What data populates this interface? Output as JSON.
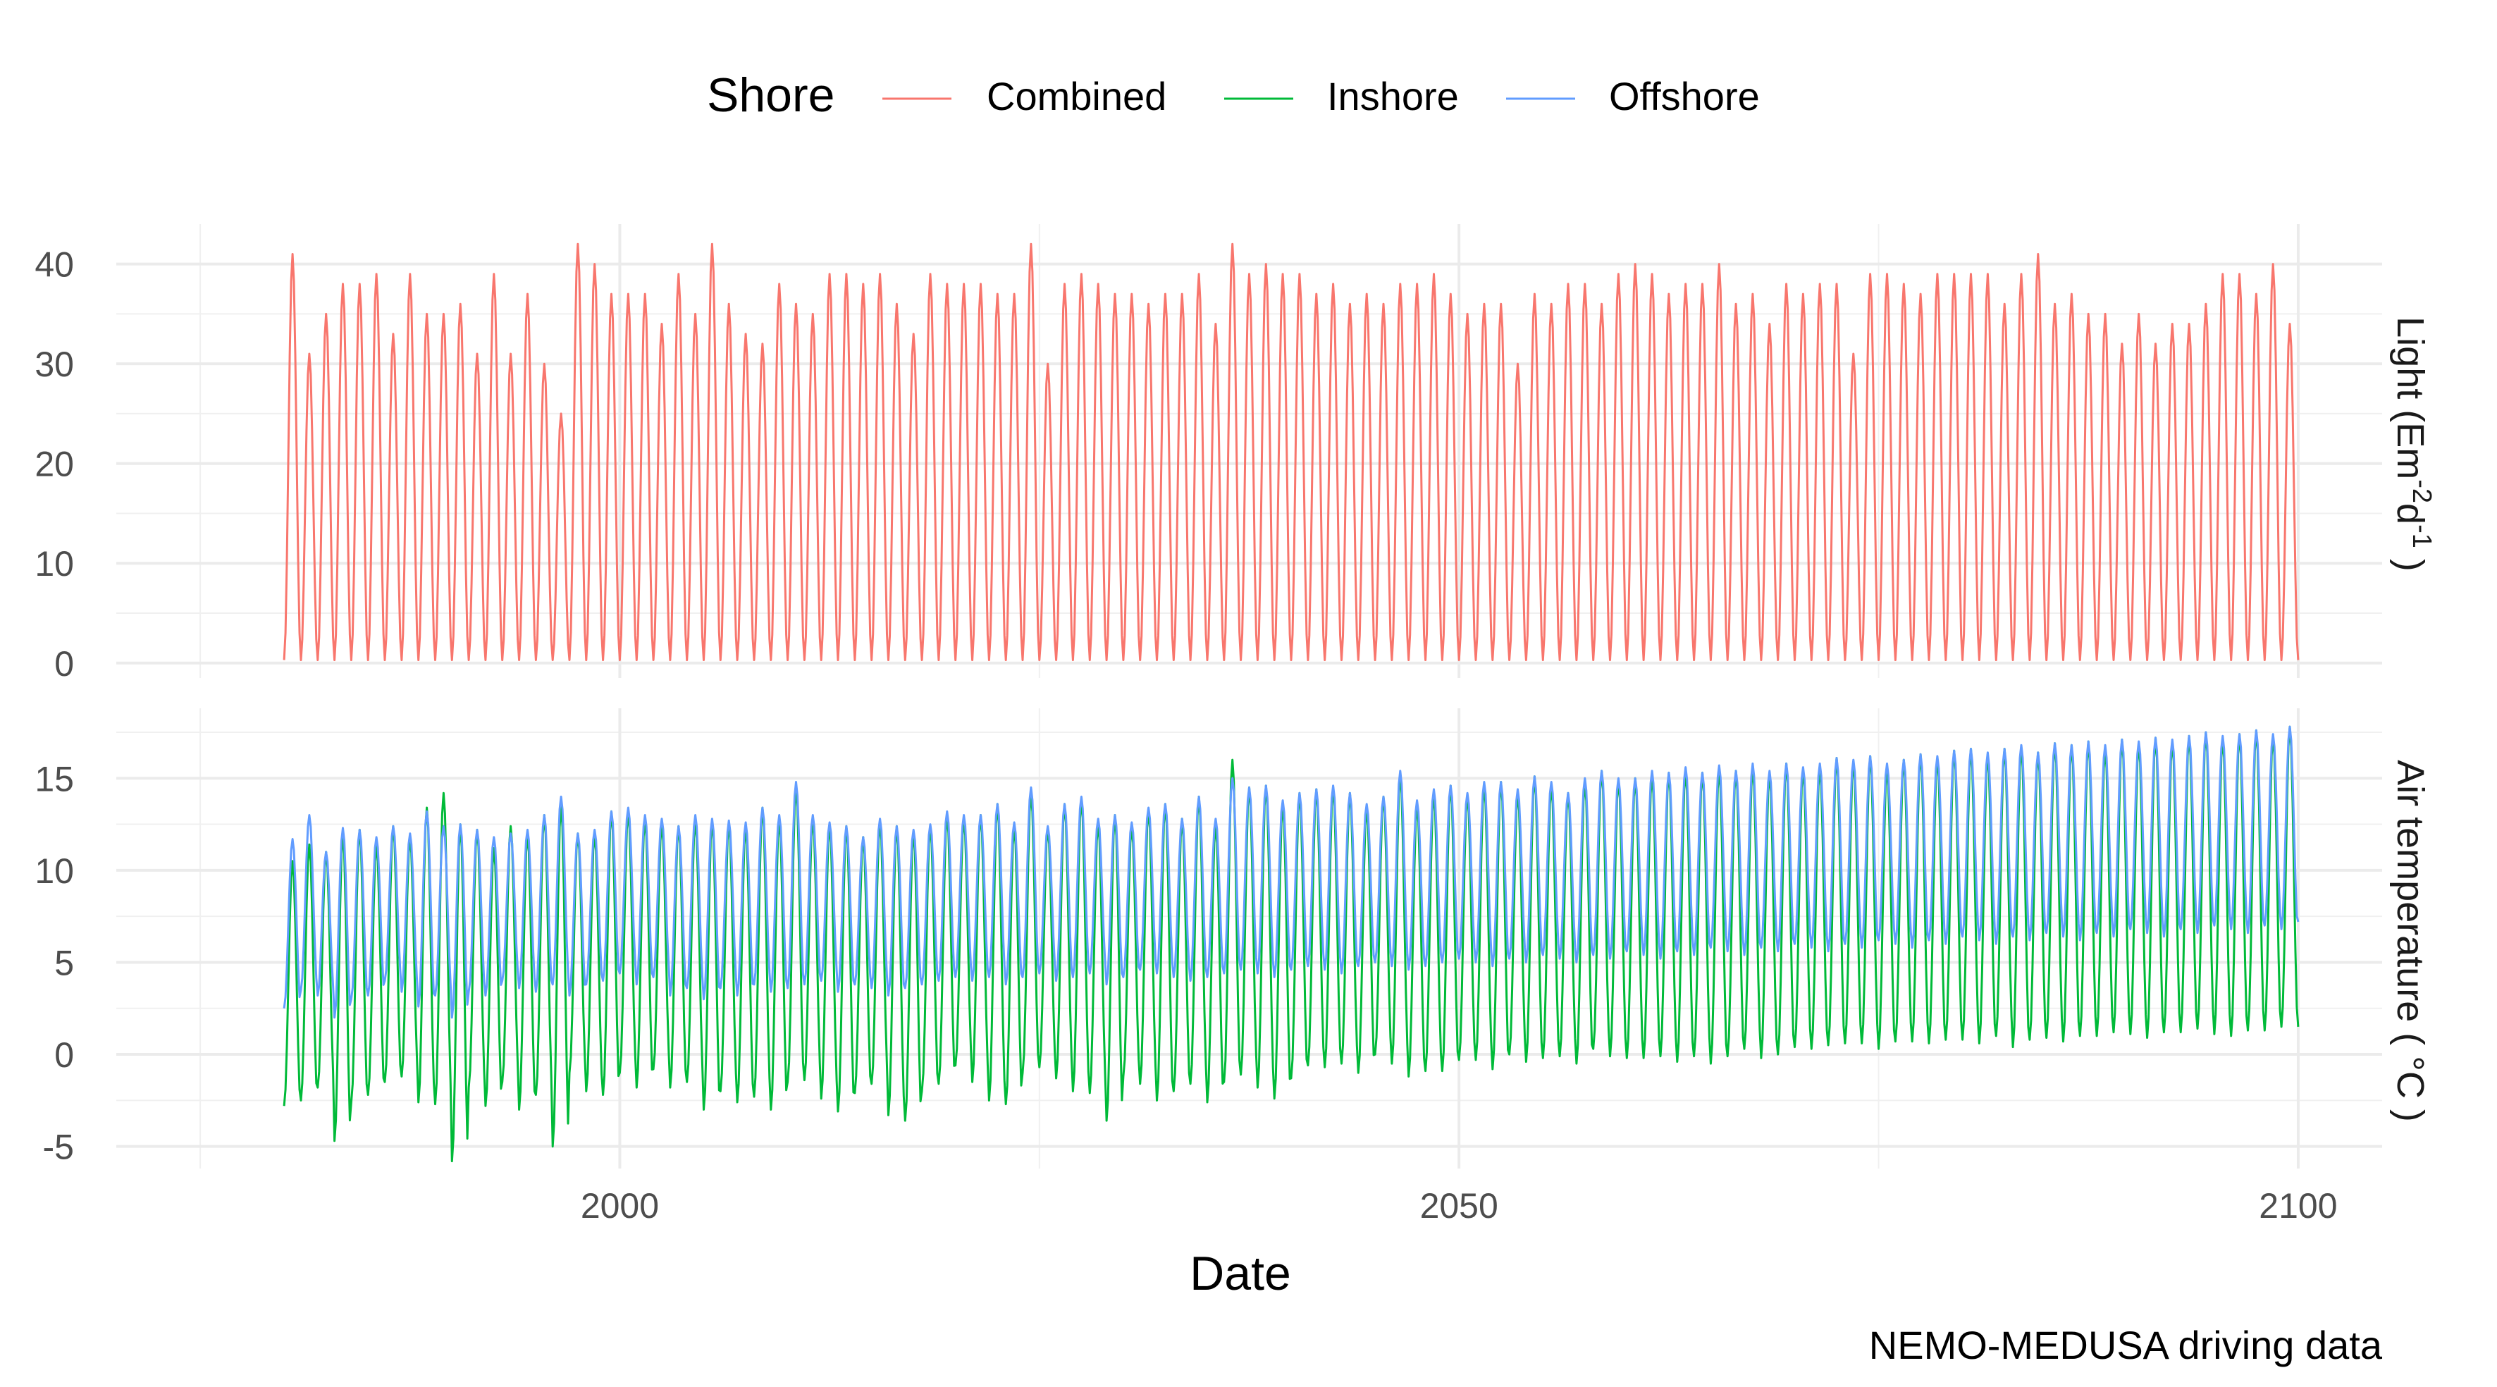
{
  "chart_data": {
    "type": "line",
    "caption": "NEMO-MEDUSA driving data",
    "xlabel": "Date",
    "xlim": [
      1970,
      2105
    ],
    "x_ticks": [
      2000,
      2050,
      2100
    ],
    "x_tick_labels": [
      "2000",
      "2050",
      "2100"
    ],
    "legend": {
      "title": "Shore",
      "position": "top",
      "entries": [
        {
          "name": "Combined",
          "color": "#F8766D"
        },
        {
          "name": "Inshore",
          "color": "#00BA38"
        },
        {
          "name": "Offshore",
          "color": "#619CFF"
        }
      ]
    },
    "panels": [
      {
        "strip_label": "Light (Em-2d-1)",
        "strip_label_parts": {
          "base": "Light (Em",
          "sup1": "-2",
          "mid": "d",
          "sup2": "-1",
          "end": " )"
        },
        "ylim": [
          -1.5,
          44
        ],
        "y_ticks": [
          0,
          10,
          20,
          30,
          40
        ],
        "y_tick_labels": [
          "0",
          "10",
          "20",
          "30",
          "40"
        ],
        "series": [
          {
            "name": "Combined",
            "color": "#F8766D",
            "x_start": 1980,
            "x_end": 2100,
            "cycle_length": 1,
            "annual_min": 0.3,
            "annual_max": [
              41,
              31,
              35,
              38,
              38,
              39,
              33,
              39,
              35,
              35,
              36,
              31,
              39,
              31,
              37,
              30,
              25,
              42,
              40,
              37,
              37,
              37,
              34,
              39,
              35,
              42,
              36,
              33,
              32,
              38,
              36,
              35,
              39,
              39,
              38,
              39,
              36,
              33,
              39,
              38,
              38,
              38,
              37,
              37,
              42,
              30,
              38,
              39,
              38,
              37,
              37,
              36,
              37,
              37,
              39,
              34,
              42,
              39,
              40,
              39,
              39,
              37,
              38,
              36,
              37,
              36,
              38,
              38,
              39,
              37,
              35,
              36,
              36,
              30,
              37,
              36,
              38,
              38,
              36,
              39,
              40,
              39,
              37,
              38,
              38,
              40,
              36,
              37,
              34,
              38,
              37,
              38,
              38,
              31,
              39,
              39,
              38,
              37,
              39,
              39,
              39,
              39,
              36,
              39,
              41,
              36,
              37,
              35,
              35,
              32,
              35,
              32,
              34,
              34,
              36,
              39,
              39,
              37,
              40,
              34,
              41
            ]
          }
        ]
      },
      {
        "strip_label": "Air temperature ( °C )",
        "ylim": [
          -6.2,
          18.8
        ],
        "y_ticks": [
          -5,
          0,
          5,
          10,
          15
        ],
        "y_tick_labels": [
          "-5",
          "0",
          "5",
          "10",
          "15"
        ],
        "series": [
          {
            "name": "Inshore",
            "color": "#00BA38",
            "x_start": 1980,
            "x_end": 2100,
            "cycle_length": 1,
            "annual_min": [
              -2.8,
              -2.5,
              -1.8,
              -4.7,
              -2.6,
              -2.2,
              -1.5,
              -1.2,
              -2.6,
              -2.7,
              -5.8,
              -1.8,
              -2.8,
              -1.5,
              -3.0,
              -2.2,
              -5.0,
              -1.0,
              -2.0,
              -2.2,
              -1.0,
              -1.8,
              -0.8,
              -1.8,
              -1.5,
              -3.0,
              -2.0,
              -2.6,
              -2.3,
              -3.0,
              -1.5,
              -1.4,
              -2.4,
              -3.1,
              -2.1,
              -1.6,
              -3.3,
              -3.6,
              -2.0,
              -1.6,
              -0.6,
              -1.5,
              -2.5,
              -2.7,
              -1.0,
              -0.7,
              -1.3,
              -2.0,
              -2.1,
              -3.6,
              -1.2,
              -1.6,
              -2.5,
              -2.0,
              -1.6,
              -2.6,
              -1.5,
              -1.1,
              -1.8,
              -2.4,
              -1.3,
              -0.6,
              -0.7,
              -0.5,
              -1.0,
              0.0,
              -0.5,
              -1.2,
              -0.9,
              -0.9,
              -0.3,
              -0.3,
              -0.8,
              0.0,
              -0.4,
              -0.2,
              -0.1,
              -0.5,
              0.3,
              -0.1,
              -0.2,
              -0.2,
              -0.1,
              -0.4,
              -0.1,
              -0.5,
              -0.1,
              0.3,
              -0.2,
              0.0,
              0.4,
              0.3,
              0.5,
              0.6,
              0.6,
              0.3,
              0.7,
              0.7,
              0.6,
              0.8,
              0.8,
              0.6,
              1.0,
              0.4,
              0.8,
              0.9,
              0.7,
              1.0,
              1.0,
              1.2,
              1.1,
              0.9,
              1.2,
              1.2,
              1.4,
              1.1,
              1.0,
              1.3,
              1.3,
              1.5
            ],
            "annual_max": [
              10.5,
              11.4,
              11.0,
              12.0,
              12.2,
              11.4,
              12.4,
              11.8,
              13.4,
              14.2,
              12.5,
              12.2,
              11.2,
              12.4,
              12.0,
              13.0,
              13.6,
              12.0,
              12.0,
              13.2,
              13.2,
              12.8,
              12.5,
              12.4,
              12.7,
              12.7,
              12.6,
              12.4,
              13.4,
              12.8,
              14.5,
              12.8,
              12.5,
              12.4,
              11.8,
              12.6,
              12.4,
              12.1,
              12.4,
              13.0,
              12.8,
              13.0,
              13.6,
              12.4,
              14.2,
              12.3,
              13.6,
              13.9,
              12.6,
              13.0,
              12.4,
              13.3,
              13.6,
              12.8,
              14.0,
              12.5,
              16.0,
              14.5,
              14.6,
              13.6,
              14.2,
              14.4,
              14.5,
              14.2,
              13.4,
              14.0,
              15.2,
              13.6,
              14.2,
              14.6,
              14.1,
              14.6,
              14.8,
              14.2,
              15.1,
              14.6,
              14.2,
              14.8,
              15.4,
              14.9,
              15.0,
              15.2,
              15.3,
              15.4,
              15.3,
              15.5,
              15.4,
              15.6,
              15.3,
              15.8,
              15.5,
              15.6,
              16.1,
              15.9,
              16.2,
              15.6,
              16.0,
              16.3,
              16.1,
              16.5,
              16.6,
              16.3,
              16.6,
              16.7,
              16.4,
              16.9,
              16.8,
              17.0,
              16.6,
              17.1,
              16.9,
              17.2,
              17.0,
              17.3,
              17.5,
              17.2,
              17.4,
              17.6,
              17.3,
              17.8,
              18.0
            ]
          },
          {
            "name": "Offshore",
            "color": "#619CFF",
            "x_start": 1980,
            "x_end": 2100,
            "cycle_length": 1,
            "annual_min": [
              2.5,
              3.5,
              3.2,
              2.0,
              3.0,
              3.2,
              4.0,
              3.4,
              2.6,
              3.2,
              2.0,
              3.4,
              3.2,
              4.0,
              3.6,
              3.4,
              3.8,
              3.2,
              3.8,
              4.0,
              4.4,
              3.8,
              4.2,
              3.2,
              3.6,
              3.0,
              3.6,
              3.2,
              3.8,
              3.4,
              3.6,
              3.8,
              4.0,
              3.4,
              3.8,
              3.6,
              3.2,
              3.6,
              3.8,
              4.0,
              4.2,
              4.0,
              4.2,
              3.8,
              4.2,
              4.4,
              4.0,
              4.2,
              4.4,
              3.8,
              4.2,
              4.6,
              4.4,
              4.2,
              4.0,
              4.2,
              4.4,
              4.6,
              4.4,
              4.2,
              4.6,
              4.8,
              4.6,
              4.4,
              4.8,
              5.0,
              4.8,
              4.6,
              4.8,
              5.0,
              5.2,
              5.0,
              4.8,
              5.2,
              5.0,
              5.4,
              5.2,
              5.0,
              5.4,
              5.2,
              5.6,
              5.4,
              5.2,
              5.6,
              5.4,
              5.8,
              5.6,
              5.4,
              5.8,
              5.6,
              6.0,
              5.8,
              5.6,
              6.0,
              5.8,
              6.2,
              6.0,
              5.8,
              6.2,
              6.0,
              6.4,
              6.2,
              6.0,
              6.4,
              6.2,
              6.6,
              6.4,
              6.2,
              6.6,
              6.4,
              6.8,
              6.6,
              6.4,
              6.8,
              6.6,
              7.0,
              6.8,
              6.6,
              7.0,
              6.8,
              7.2
            ],
            "annual_max": [
              11.7,
              13.0,
              11.0,
              12.3,
              12.2,
              11.8,
              12.4,
              12.0,
              13.2,
              12.4,
              12.5,
              12.2,
              11.8,
              12.0,
              12.2,
              13.0,
              14.0,
              12.0,
              12.2,
              13.2,
              13.4,
              13.0,
              12.8,
              12.4,
              13.0,
              12.8,
              12.7,
              12.6,
              13.4,
              13.0,
              14.8,
              13.0,
              12.6,
              12.4,
              11.8,
              12.8,
              12.4,
              12.2,
              12.5,
              13.2,
              13.0,
              13.0,
              13.6,
              12.6,
              14.5,
              12.4,
              13.6,
              14.0,
              12.8,
              13.0,
              12.6,
              13.4,
              13.6,
              12.8,
              14.0,
              12.8,
              15.0,
              14.5,
              14.6,
              13.8,
              14.2,
              14.4,
              14.6,
              14.2,
              13.6,
              14.0,
              15.4,
              13.8,
              14.4,
              14.6,
              14.2,
              14.8,
              14.8,
              14.4,
              15.1,
              14.8,
              14.2,
              15.0,
              15.4,
              15.0,
              15.0,
              15.4,
              15.3,
              15.6,
              15.3,
              15.7,
              15.4,
              15.8,
              15.4,
              15.8,
              15.6,
              15.8,
              16.1,
              16.0,
              16.2,
              15.8,
              16.0,
              16.3,
              16.2,
              16.5,
              16.6,
              16.4,
              16.6,
              16.8,
              16.4,
              16.9,
              16.8,
              17.0,
              16.8,
              17.1,
              17.0,
              17.2,
              17.1,
              17.3,
              17.5,
              17.3,
              17.4,
              17.6,
              17.4,
              17.8,
              18.0
            ]
          }
        ]
      }
    ]
  }
}
